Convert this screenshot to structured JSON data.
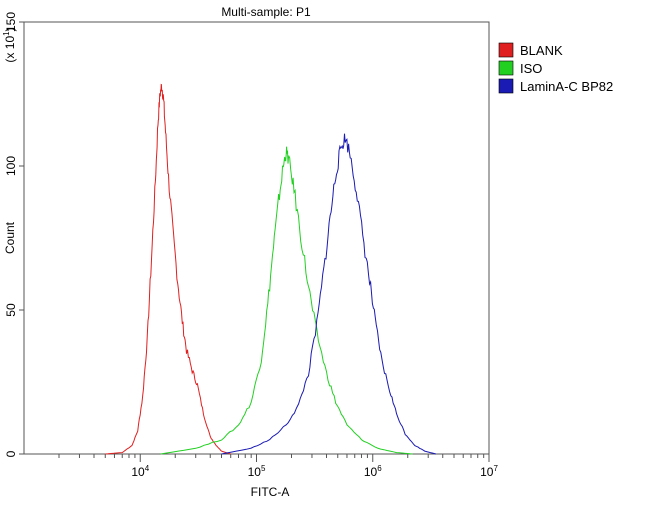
{
  "chart_data": {
    "type": "line",
    "title": "Multi-sample: P1",
    "xlabel": "FITC-A",
    "ylabel": "Count",
    "y_multiplier_label": "(x 10",
    "y_multiplier_exp": "1",
    "y_multiplier_close": ")",
    "x_scale": "log",
    "xlim": [
      1000,
      10000000
    ],
    "ylim": [
      0,
      150
    ],
    "x_ticks": [
      {
        "value": 10000,
        "base": "10",
        "exp": "4"
      },
      {
        "value": 100000,
        "base": "10",
        "exp": "5"
      },
      {
        "value": 1000000,
        "base": "10",
        "exp": "6"
      },
      {
        "value": 10000000,
        "base": "10",
        "exp": "7"
      }
    ],
    "y_ticks": [
      0,
      50,
      100,
      150
    ],
    "grid": false,
    "legend_position": "top-right",
    "series": [
      {
        "name": "BLANK",
        "color": "#e02020",
        "points": [
          [
            5000,
            0
          ],
          [
            7000,
            0.5
          ],
          [
            8500,
            3
          ],
          [
            9500,
            8
          ],
          [
            10500,
            20
          ],
          [
            11500,
            40
          ],
          [
            12500,
            68
          ],
          [
            13500,
            95
          ],
          [
            14200,
            115
          ],
          [
            14800,
            125
          ],
          [
            15300,
            128
          ],
          [
            15800,
            124
          ],
          [
            16500,
            112
          ],
          [
            17500,
            96
          ],
          [
            19000,
            78
          ],
          [
            21000,
            60
          ],
          [
            23000,
            46
          ],
          [
            25000,
            36
          ],
          [
            28000,
            29
          ],
          [
            31000,
            24
          ],
          [
            35000,
            14
          ],
          [
            40000,
            6
          ],
          [
            45000,
            3
          ],
          [
            50000,
            1
          ],
          [
            60000,
            0
          ]
        ]
      },
      {
        "name": "ISO",
        "color": "#22d022",
        "points": [
          [
            15000,
            0
          ],
          [
            30000,
            2
          ],
          [
            50000,
            5
          ],
          [
            70000,
            10
          ],
          [
            90000,
            18
          ],
          [
            110000,
            33
          ],
          [
            125000,
            52
          ],
          [
            140000,
            72
          ],
          [
            155000,
            88
          ],
          [
            170000,
            100
          ],
          [
            180000,
            105
          ],
          [
            190000,
            102
          ],
          [
            210000,
            92
          ],
          [
            240000,
            76
          ],
          [
            280000,
            58
          ],
          [
            330000,
            42
          ],
          [
            400000,
            28
          ],
          [
            480000,
            18
          ],
          [
            600000,
            10
          ],
          [
            800000,
            5
          ],
          [
            1100000,
            2
          ],
          [
            1600000,
            0.5
          ],
          [
            2200000,
            0
          ]
        ]
      },
      {
        "name": "LaminA-C BP82",
        "color": "#1a1ab4",
        "points": [
          [
            50000,
            0
          ],
          [
            90000,
            2
          ],
          [
            130000,
            5
          ],
          [
            180000,
            10
          ],
          [
            230000,
            17
          ],
          [
            280000,
            28
          ],
          [
            330000,
            45
          ],
          [
            380000,
            64
          ],
          [
            430000,
            82
          ],
          [
            480000,
            97
          ],
          [
            530000,
            106
          ],
          [
            580000,
            110
          ],
          [
            640000,
            104
          ],
          [
            720000,
            92
          ],
          [
            820000,
            76
          ],
          [
            940000,
            60
          ],
          [
            1050000,
            46
          ],
          [
            1200000,
            32
          ],
          [
            1400000,
            22
          ],
          [
            1600000,
            14
          ],
          [
            1900000,
            7
          ],
          [
            2300000,
            3
          ],
          [
            2800000,
            1
          ],
          [
            3500000,
            0
          ]
        ]
      }
    ]
  }
}
